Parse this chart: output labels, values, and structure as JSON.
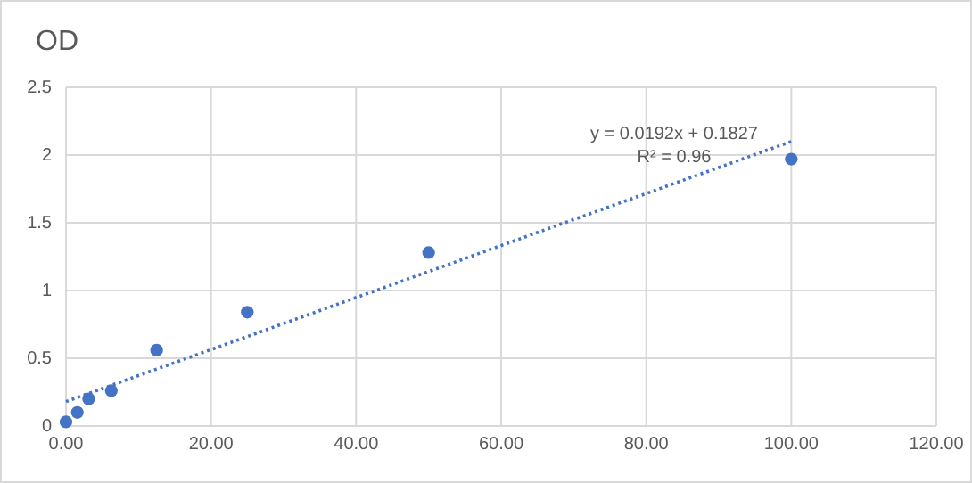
{
  "chart_data": {
    "type": "scatter",
    "title": "OD",
    "series": [
      {
        "color": "#4472c4",
        "marker": "circle",
        "x": [
          0,
          1.5625,
          3.125,
          6.25,
          12.5,
          25,
          50,
          100
        ],
        "values": [
          0.03,
          0.1,
          0.2,
          0.26,
          0.56,
          0.84,
          1.28,
          1.97
        ]
      },
      {
        "type": "line",
        "color": "#4472c4",
        "line_style": "dotted",
        "marker": "none",
        "x": [
          0,
          100
        ],
        "values": [
          0.18,
          2.1
        ]
      }
    ],
    "annotations": [
      "y = 0.0192x + 0.1827",
      "R² = 0.96"
    ],
    "xlim": [
      0,
      120
    ],
    "xticks": [
      {
        "value": 0,
        "label": "0.00"
      },
      {
        "value": 20,
        "label": "20.00"
      },
      {
        "value": 40,
        "label": "40.00"
      },
      {
        "value": 60,
        "label": "60.00"
      },
      {
        "value": 80,
        "label": "80.00"
      },
      {
        "value": 100,
        "label": "100.00"
      },
      {
        "value": 120,
        "label": "120.00"
      }
    ],
    "ylim": [
      0,
      2.5
    ],
    "yticks": [
      0,
      0.5,
      1,
      1.5,
      2,
      2.5
    ],
    "grid": true
  }
}
